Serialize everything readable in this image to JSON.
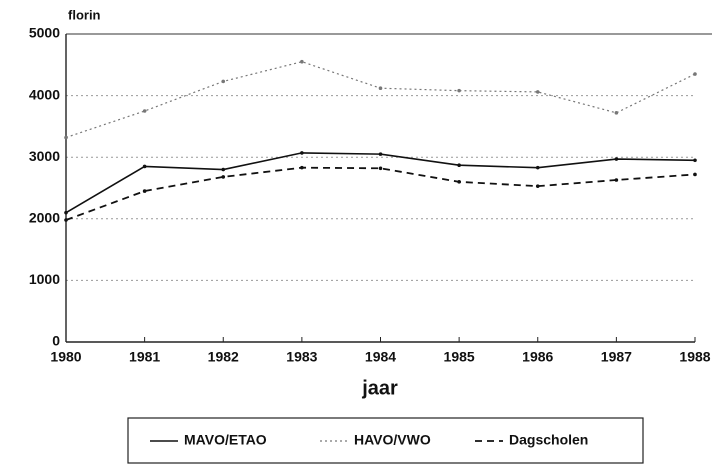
{
  "chart_data": {
    "type": "line",
    "y_label": "florin",
    "x_label": "jaar",
    "x": [
      1980,
      1981,
      1982,
      1983,
      1984,
      1985,
      1986,
      1987,
      1988
    ],
    "series": [
      {
        "name": "MAVO/ETAO",
        "color": "#111111",
        "style": "solid",
        "values": [
          2100,
          2850,
          2800,
          3070,
          3050,
          2870,
          2830,
          2970,
          2950
        ]
      },
      {
        "name": "HAVO/VWO",
        "color": "#777777",
        "style": "dotted",
        "values": [
          3320,
          3750,
          4230,
          4550,
          4120,
          4080,
          4060,
          3720,
          4350
        ]
      },
      {
        "name": "Dagscholen",
        "color": "#111111",
        "style": "dashed",
        "values": [
          1980,
          2450,
          2680,
          2830,
          2820,
          2600,
          2530,
          2630,
          2720
        ]
      }
    ],
    "xlim": [
      1980,
      1988
    ],
    "xticks": [
      1980,
      1981,
      1982,
      1983,
      1984,
      1985,
      1986,
      1987,
      1988
    ],
    "ylim": [
      0,
      5000
    ],
    "yticks": [
      0,
      1000,
      2000,
      3000,
      4000,
      5000
    ],
    "grid": true,
    "legend": "bottom"
  }
}
